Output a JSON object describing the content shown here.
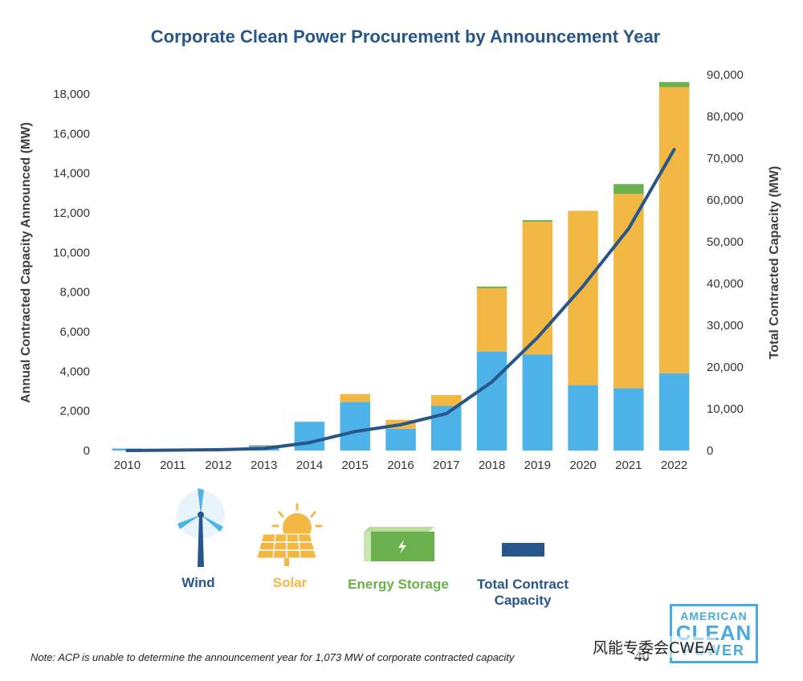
{
  "chart_data": {
    "type": "bar",
    "title": "Corporate Clean Power Procurement by Announcement Year",
    "ylabel": "Annual Contracted Capacity Announced (MW)",
    "y2label": "Total Contracted Capacity (MW)",
    "categories": [
      "2010",
      "2011",
      "2012",
      "2013",
      "2014",
      "2015",
      "2016",
      "2017",
      "2018",
      "2019",
      "2020",
      "2021",
      "2022"
    ],
    "ylim": [
      0,
      18000
    ],
    "y2lim": [
      0,
      90000
    ],
    "yticks": [
      "0",
      "2,000",
      "4,000",
      "6,000",
      "8,000",
      "10,000",
      "12,000",
      "14,000",
      "16,000",
      "18,000"
    ],
    "y2ticks": [
      "0",
      "10,000",
      "20,000",
      "30,000",
      "40,000",
      "50,000",
      "60,000",
      "70,000",
      "80,000",
      "90,000"
    ],
    "stacked": true,
    "series": [
      {
        "name": "Wind",
        "color": "#4db3e8",
        "values": [
          100,
          30,
          60,
          250,
          1450,
          2450,
          1100,
          2250,
          5000,
          4850,
          3300,
          3150,
          3900
        ]
      },
      {
        "name": "Solar",
        "color": "#f2b843",
        "values": [
          0,
          0,
          0,
          30,
          0,
          400,
          450,
          550,
          3200,
          6700,
          8800,
          9800,
          14450
        ]
      },
      {
        "name": "Energy Storage",
        "color": "#6ab04c",
        "values": [
          0,
          0,
          0,
          0,
          0,
          0,
          0,
          0,
          80,
          80,
          0,
          500,
          250
        ]
      },
      {
        "name": "Total Contract Capacity",
        "type": "line",
        "axis": "right",
        "color": "#27568a",
        "values": [
          0,
          100,
          200,
          500,
          2000,
          4800,
          6500,
          9300,
          17300,
          28500,
          41500,
          56000,
          76000
        ]
      }
    ],
    "legend": {
      "placement": "bottom",
      "labels": [
        "Wind",
        "Solar",
        "Energy Storage",
        "Total Contract",
        "Capacity"
      ],
      "colors": {
        "wind": "#27568a",
        "solar": "#f2b843",
        "storage": "#6ab04c",
        "total": "#27568a"
      }
    },
    "grid": false
  },
  "note": "Note: ACP is unable to determine the announcement year for 1,073 MW of corporate contracted capacity",
  "page_number": "40",
  "logo": {
    "line1": "AMERICAN",
    "line2": "CLEAN",
    "line3": "POWER"
  },
  "watermark": "风能专委会CWEA"
}
